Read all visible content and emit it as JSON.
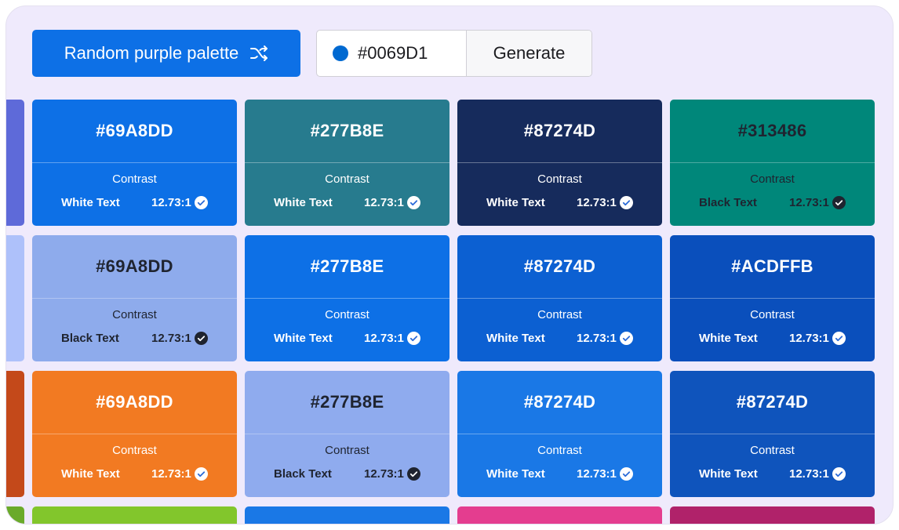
{
  "toolbar": {
    "random_label": "Random purple palette",
    "hex_value": "#0069D1",
    "hex_dot_color": "#0069D1",
    "generate_label": "Generate"
  },
  "edge_strips": [
    {
      "color": "#5e6ad9"
    },
    {
      "color": "#aec1fa"
    },
    {
      "color": "#c4491a"
    },
    {
      "color": "#6aaa2a"
    }
  ],
  "cards": [
    {
      "hex": "#69A8DD",
      "bg": "#0d70e6",
      "contrast": "Contrast",
      "text_mode": "White Text",
      "ratio": "12.73:1",
      "tone": "w"
    },
    {
      "hex": "#277B8E",
      "bg": "#277b8e",
      "contrast": "Contrast",
      "text_mode": "White Text",
      "ratio": "12.73:1",
      "tone": "w"
    },
    {
      "hex": "#87274D",
      "bg": "#162b5c",
      "contrast": "Contrast",
      "text_mode": "White Text",
      "ratio": "12.73:1",
      "tone": "w"
    },
    {
      "hex": "#313486",
      "bg": "#00877a",
      "contrast": "Contrast",
      "text_mode": "Black Text",
      "ratio": "12.73:1",
      "tone": "b"
    },
    {
      "hex": "#69A8DD",
      "bg": "#8eabec",
      "contrast": "Contrast",
      "text_mode": "Black Text",
      "ratio": "12.73:1",
      "tone": "b"
    },
    {
      "hex": "#277B8E",
      "bg": "#0d70e6",
      "contrast": "Contrast",
      "text_mode": "White Text",
      "ratio": "12.73:1",
      "tone": "w"
    },
    {
      "hex": "#87274D",
      "bg": "#0c60d2",
      "contrast": "Contrast",
      "text_mode": "White Text",
      "ratio": "12.73:1",
      "tone": "w"
    },
    {
      "hex": "#ACDFFB",
      "bg": "#0a4fbc",
      "contrast": "Contrast",
      "text_mode": "White Text",
      "ratio": "12.73:1",
      "tone": "w"
    },
    {
      "hex": "#69A8DD",
      "bg": "#f27a22",
      "contrast": "Contrast",
      "text_mode": "White Text",
      "ratio": "12.73:1",
      "tone": "w"
    },
    {
      "hex": "#277B8E",
      "bg": "#8fabee",
      "contrast": "Contrast",
      "text_mode": "Black Text",
      "ratio": "12.73:1",
      "tone": "b"
    },
    {
      "hex": "#87274D",
      "bg": "#1a78e6",
      "contrast": "Contrast",
      "text_mode": "White Text",
      "ratio": "12.73:1",
      "tone": "w"
    },
    {
      "hex": "#87274D",
      "bg": "#0f54bc",
      "contrast": "Contrast",
      "text_mode": "White Text",
      "ratio": "12.73:1",
      "tone": "w"
    }
  ],
  "bottom_row": [
    {
      "bg": "#82c62c"
    },
    {
      "bg": "#1a78e6"
    },
    {
      "bg": "#e43d8f"
    },
    {
      "bg": "#b0226a"
    }
  ]
}
